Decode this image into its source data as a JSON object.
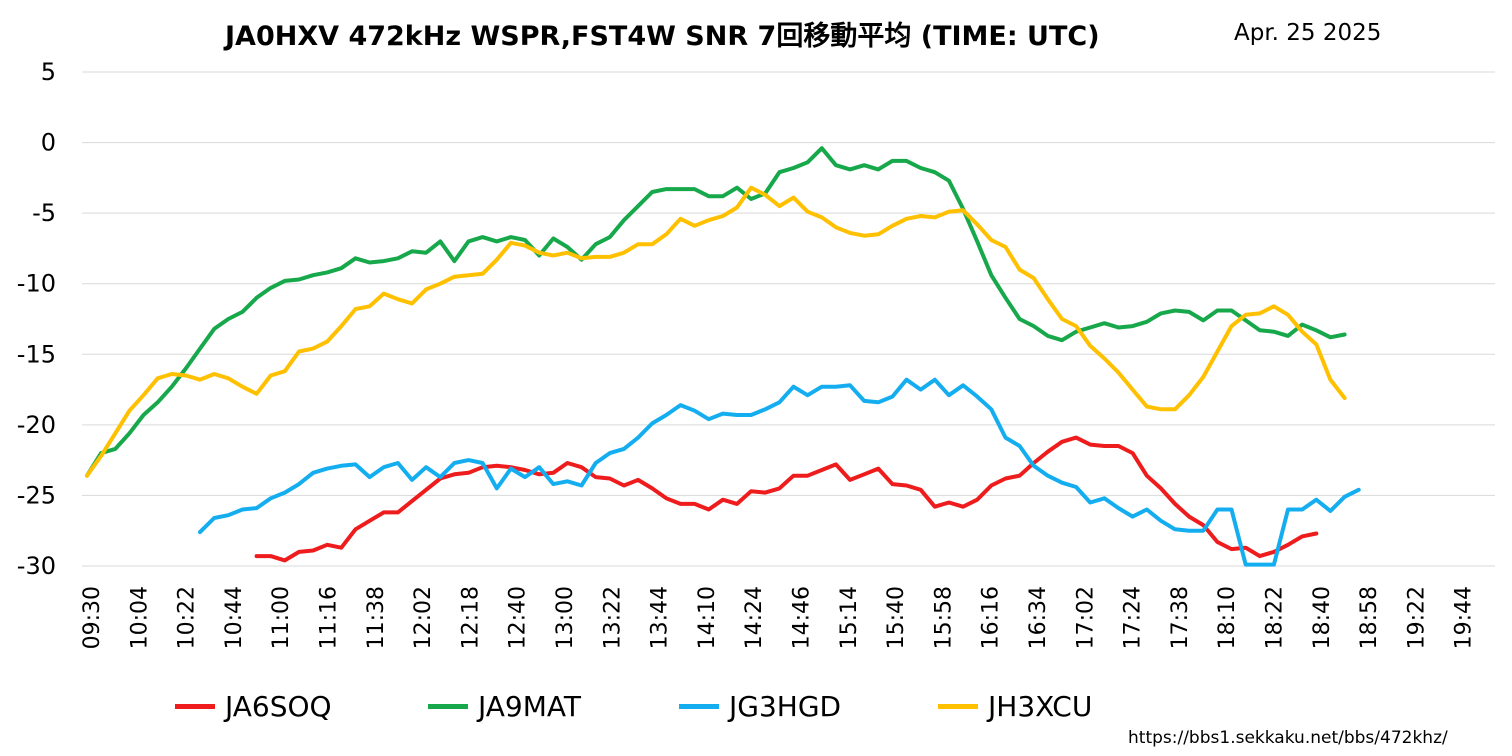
{
  "chart_data": {
    "type": "line",
    "title": "JA0HXV 472kHz WSPR,FST4W SNR 7回移動平均 (TIME: UTC)",
    "date": "Apr. 25 2025",
    "ylim": [
      -30,
      5
    ],
    "yticks": [
      "5",
      "0",
      "-5",
      "-10",
      "-15",
      "-20",
      "-25",
      "-30"
    ],
    "grid": true,
    "legend_position": "bottom",
    "xtick_labels": [
      "09:30",
      "10:04",
      "10:22",
      "10:44",
      "11:00",
      "11:16",
      "11:38",
      "12:02",
      "12:18",
      "12:40",
      "13:00",
      "13:22",
      "13:44",
      "14:10",
      "14:24",
      "14:46",
      "15:14",
      "15:40",
      "15:58",
      "16:16",
      "16:34",
      "17:02",
      "17:24",
      "17:38",
      "18:10",
      "18:22",
      "18:40",
      "18:58",
      "19:22",
      "19:44"
    ],
    "x_count": 100,
    "series": [
      {
        "name": "JA6SOQ",
        "color": "#ee1c1c",
        "start": 12,
        "values": [
          -29.3,
          -29.3,
          -29.6,
          -29.0,
          -28.9,
          -28.5,
          -28.7,
          -27.4,
          -26.8,
          -26.2,
          -26.2,
          -25.4,
          -24.6,
          -23.8,
          -23.5,
          -23.4,
          -23.0,
          -22.9,
          -23.0,
          -23.2,
          -23.5,
          -23.4,
          -22.7,
          -23.0,
          -23.7,
          -23.8,
          -24.3,
          -23.9,
          -24.5,
          -25.2,
          -25.6,
          -25.6,
          -26.0,
          -25.3,
          -25.6,
          -24.7,
          -24.8,
          -24.5,
          -23.6,
          -23.6,
          -23.2,
          -22.8,
          -23.9,
          -23.5,
          -23.1,
          -24.2,
          -24.3,
          -24.6,
          -25.8,
          -25.5,
          -25.8,
          -25.3,
          -24.3,
          -23.8,
          -23.6,
          -22.7,
          -21.9,
          -21.2,
          -20.9,
          -21.4,
          -21.5,
          -21.5,
          -22.0,
          -23.6,
          -24.5,
          -25.6,
          -26.5,
          -27.1,
          -28.3,
          -28.8,
          -28.7,
          -29.3,
          -29.0,
          -28.5,
          -27.9,
          -27.7
        ]
      },
      {
        "name": "JA9MAT",
        "color": "#16a84a",
        "start": 0,
        "values": [
          -23.6,
          -22.0,
          -21.7,
          -20.6,
          -19.3,
          -18.4,
          -17.3,
          -16.0,
          -14.6,
          -13.2,
          -12.5,
          -12.0,
          -11.0,
          -10.3,
          -9.8,
          -9.7,
          -9.4,
          -9.2,
          -8.9,
          -8.2,
          -8.5,
          -8.4,
          -8.2,
          -7.7,
          -7.8,
          -7.0,
          -8.4,
          -7.0,
          -6.7,
          -7.0,
          -6.7,
          -6.9,
          -8.0,
          -6.8,
          -7.4,
          -8.3,
          -7.2,
          -6.7,
          -5.5,
          -4.5,
          -3.5,
          -3.3,
          -3.3,
          -3.3,
          -3.8,
          -3.8,
          -3.2,
          -4.0,
          -3.6,
          -2.1,
          -1.8,
          -1.4,
          -0.4,
          -1.6,
          -1.9,
          -1.6,
          -1.9,
          -1.3,
          -1.3,
          -1.8,
          -2.1,
          -2.7,
          -4.7,
          -7.0,
          -9.4,
          -11.0,
          -12.5,
          -13.0,
          -13.7,
          -14.0,
          -13.4,
          -13.1,
          -12.8,
          -13.1,
          -13.0,
          -12.7,
          -12.1,
          -11.9,
          -12.0,
          -12.6,
          -11.9,
          -11.9,
          -12.6,
          -13.3,
          -13.4,
          -13.7,
          -12.9,
          -13.3,
          -13.8,
          -13.6
        ]
      },
      {
        "name": "JG3HGD",
        "color": "#14aef0",
        "start": 8,
        "values": [
          -27.6,
          -26.6,
          -26.4,
          -26.0,
          -25.9,
          -25.2,
          -24.8,
          -24.2,
          -23.4,
          -23.1,
          -22.9,
          -22.8,
          -23.7,
          -23.0,
          -22.7,
          -23.9,
          -23.0,
          -23.7,
          -22.7,
          -22.5,
          -22.7,
          -24.5,
          -23.1,
          -23.7,
          -23.0,
          -24.2,
          -24.0,
          -24.3,
          -22.7,
          -22.0,
          -21.7,
          -20.9,
          -19.9,
          -19.3,
          -18.6,
          -19.0,
          -19.6,
          -19.2,
          -19.3,
          -19.3,
          -18.9,
          -18.4,
          -17.3,
          -17.9,
          -17.3,
          -17.3,
          -17.2,
          -18.3,
          -18.4,
          -18.0,
          -16.8,
          -17.5,
          -16.8,
          -17.9,
          -17.2,
          -18.0,
          -18.9,
          -20.9,
          -21.5,
          -22.9,
          -23.6,
          -24.1,
          -24.4,
          -25.5,
          -25.2,
          -25.9,
          -26.5,
          -26.0,
          -26.8,
          -27.4,
          -27.5,
          -27.5,
          -26.0,
          -26.0,
          -29.9,
          -29.9,
          -29.9,
          -26.0,
          -26.0,
          -25.3,
          -26.1,
          -25.1,
          -24.6
        ]
      },
      {
        "name": "JH3XCU",
        "color": "#ffc000",
        "start": 0,
        "values": [
          -23.6,
          -22.2,
          -20.6,
          -19.0,
          -17.9,
          -16.7,
          -16.4,
          -16.5,
          -16.8,
          -16.4,
          -16.7,
          -17.3,
          -17.8,
          -16.5,
          -16.2,
          -14.8,
          -14.6,
          -14.1,
          -13.0,
          -11.8,
          -11.6,
          -10.7,
          -11.1,
          -11.4,
          -10.4,
          -10.0,
          -9.5,
          -9.4,
          -9.3,
          -8.3,
          -7.1,
          -7.3,
          -7.8,
          -8.0,
          -7.8,
          -8.2,
          -8.1,
          -8.1,
          -7.8,
          -7.2,
          -7.2,
          -6.5,
          -5.4,
          -5.9,
          -5.5,
          -5.2,
          -4.6,
          -3.2,
          -3.7,
          -4.5,
          -3.9,
          -4.9,
          -5.3,
          -6.0,
          -6.4,
          -6.6,
          -6.5,
          -5.9,
          -5.4,
          -5.2,
          -5.3,
          -4.9,
          -4.8,
          -5.8,
          -6.9,
          -7.4,
          -9.0,
          -9.6,
          -11.1,
          -12.5,
          -13.0,
          -14.4,
          -15.3,
          -16.3,
          -17.5,
          -18.7,
          -18.9,
          -18.9,
          -17.9,
          -16.6,
          -14.8,
          -13.0,
          -12.2,
          -12.1,
          -11.6,
          -12.2,
          -13.4,
          -14.3,
          -16.8,
          -18.1
        ]
      }
    ]
  },
  "source_url": "https://bbs1.sekkaku.net/bbs/472khz/"
}
